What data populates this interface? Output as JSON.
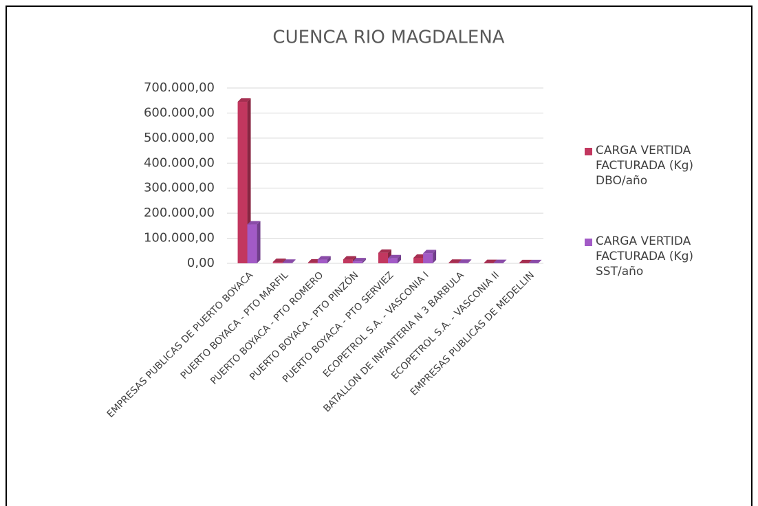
{
  "chart_data": {
    "type": "bar3d",
    "title": "CUENCA RIO MAGDALENA",
    "categories": [
      "EMPRESAS PUBLICAS DE PUERTO BOYACA",
      "PUERTO BOYACA - PTO MARFIL",
      "PUERTO BOYACA - PTO ROMERO",
      "PUERTO BOYACA - PTO PINZÓN",
      "PUERTO BOYACA - PTO SERVIEZ",
      "ECOPETROL S.A. - VASCONIA I",
      "BATALLON DE INFANTERIA N 3 BARBULA",
      "ECOPETROL S.A. - VASCONIA II",
      "EMPRESAS PUBLICAS DE MEDELLIN"
    ],
    "series": [
      {
        "name": "CARGA VERTIDA FACTURADA (Kg) DBO/año",
        "color": "#c2375f",
        "values": [
          645000,
          5000,
          3000,
          15000,
          42000,
          22000,
          2000,
          1000,
          500
        ]
      },
      {
        "name": "CARGA VERTIDA FACTURADA (Kg) SST/año",
        "color": "#a25ac6",
        "values": [
          155000,
          2000,
          15000,
          8000,
          20000,
          40000,
          2000,
          1000,
          500
        ]
      }
    ],
    "ylim": [
      0,
      700000
    ],
    "yticks": [
      {
        "value": 0,
        "label": "0,00"
      },
      {
        "value": 100000,
        "label": "100.000,00"
      },
      {
        "value": 200000,
        "label": "200.000,00"
      },
      {
        "value": 300000,
        "label": "300.000,00"
      },
      {
        "value": 400000,
        "label": "400.000,00"
      },
      {
        "value": 500000,
        "label": "500.000,00"
      },
      {
        "value": 600000,
        "label": "600.000,00"
      },
      {
        "value": 700000,
        "label": "700.000,00"
      }
    ],
    "grid": true,
    "legend": "right"
  }
}
